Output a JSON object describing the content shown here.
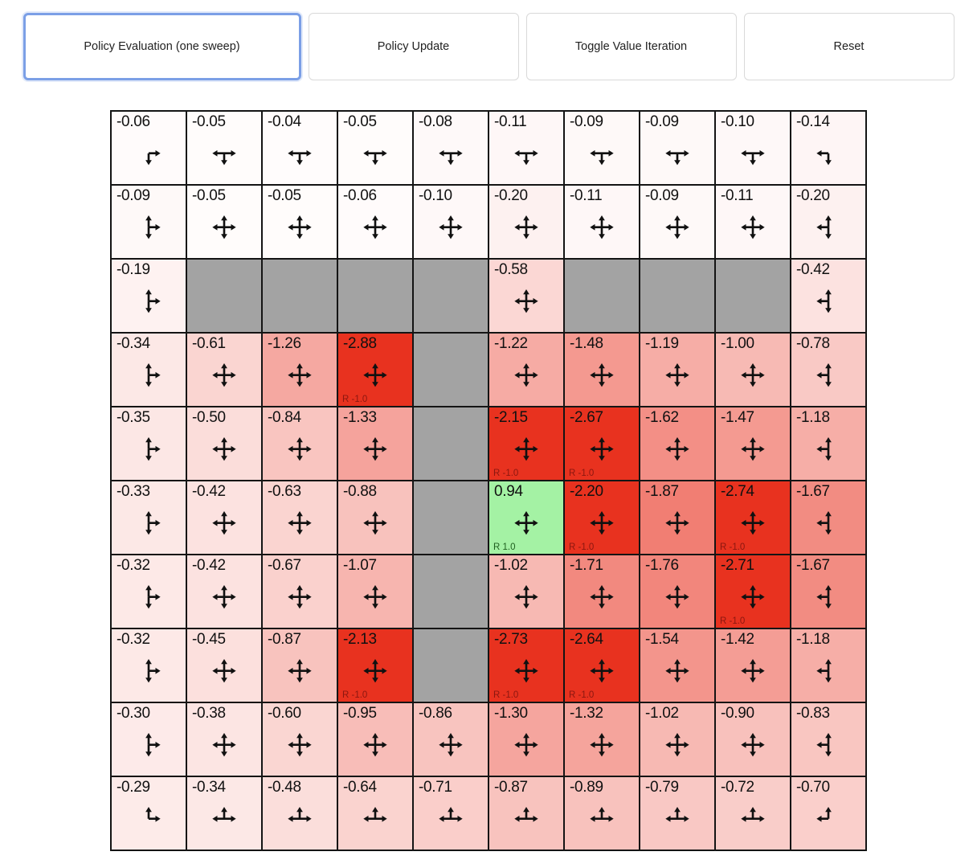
{
  "toolbar": {
    "buttons": [
      {
        "label": "Policy Evaluation (one sweep)",
        "active": true
      },
      {
        "label": "Policy Update",
        "active": false
      },
      {
        "label": "Toggle Value Iteration",
        "active": false
      },
      {
        "label": "Reset",
        "active": false
      }
    ]
  },
  "colors": {
    "penalty": "#e8321f",
    "goal_bg": "#a4f2a4",
    "wall": "#a3a3a3",
    "active_button_border": "#7b9fe6",
    "cell_border": "#141414",
    "heat_red": "#e8301f"
  },
  "grid": {
    "rows": 10,
    "cols": 10,
    "cells": [
      [
        {
          "v": "-0.06",
          "p": "DR"
        },
        {
          "v": "-0.05",
          "p": "DLR"
        },
        {
          "v": "-0.04",
          "p": "DLR"
        },
        {
          "v": "-0.05",
          "p": "DLR"
        },
        {
          "v": "-0.08",
          "p": "DLR"
        },
        {
          "v": "-0.11",
          "p": "DLR"
        },
        {
          "v": "-0.09",
          "p": "DLR"
        },
        {
          "v": "-0.09",
          "p": "DLR"
        },
        {
          "v": "-0.10",
          "p": "DLR"
        },
        {
          "v": "-0.14",
          "p": "DL"
        }
      ],
      [
        {
          "v": "-0.09",
          "p": "UDR"
        },
        {
          "v": "-0.05",
          "p": "UDLR"
        },
        {
          "v": "-0.05",
          "p": "UDLR"
        },
        {
          "v": "-0.06",
          "p": "UDLR"
        },
        {
          "v": "-0.10",
          "p": "UDLR"
        },
        {
          "v": "-0.20",
          "p": "UDLR"
        },
        {
          "v": "-0.11",
          "p": "UDLR"
        },
        {
          "v": "-0.09",
          "p": "UDLR"
        },
        {
          "v": "-0.11",
          "p": "UDLR"
        },
        {
          "v": "-0.20",
          "p": "UDL"
        }
      ],
      [
        {
          "v": "-0.19",
          "p": "UDR"
        },
        {
          "w": true
        },
        {
          "w": true
        },
        {
          "w": true
        },
        {
          "w": true
        },
        {
          "v": "-0.58",
          "p": "UDLR"
        },
        {
          "w": true
        },
        {
          "w": true
        },
        {
          "w": true
        },
        {
          "v": "-0.42",
          "p": "UDL"
        }
      ],
      [
        {
          "v": "-0.34",
          "p": "UDR"
        },
        {
          "v": "-0.61",
          "p": "UDLR"
        },
        {
          "v": "-1.26",
          "p": "UDLR"
        },
        {
          "v": "-2.88",
          "p": "UDLR",
          "r": "R -1.0"
        },
        {
          "w": true
        },
        {
          "v": "-1.22",
          "p": "UDLR"
        },
        {
          "v": "-1.48",
          "p": "UDLR"
        },
        {
          "v": "-1.19",
          "p": "UDLR"
        },
        {
          "v": "-1.00",
          "p": "UDLR"
        },
        {
          "v": "-0.78",
          "p": "UDL"
        }
      ],
      [
        {
          "v": "-0.35",
          "p": "UDR"
        },
        {
          "v": "-0.50",
          "p": "UDLR"
        },
        {
          "v": "-0.84",
          "p": "UDLR"
        },
        {
          "v": "-1.33",
          "p": "UDLR"
        },
        {
          "w": true
        },
        {
          "v": "-2.15",
          "p": "UDLR",
          "r": "R -1.0"
        },
        {
          "v": "-2.67",
          "p": "UDLR",
          "r": "R -1.0"
        },
        {
          "v": "-1.62",
          "p": "UDLR"
        },
        {
          "v": "-1.47",
          "p": "UDLR"
        },
        {
          "v": "-1.18",
          "p": "UDL"
        }
      ],
      [
        {
          "v": "-0.33",
          "p": "UDR"
        },
        {
          "v": "-0.42",
          "p": "UDLR"
        },
        {
          "v": "-0.63",
          "p": "UDLR"
        },
        {
          "v": "-0.88",
          "p": "UDLR"
        },
        {
          "w": true
        },
        {
          "v": "0.94",
          "p": "UDLR",
          "r": "R 1.0",
          "g": true
        },
        {
          "v": "-2.20",
          "p": "UDLR",
          "r": "R -1.0"
        },
        {
          "v": "-1.87",
          "p": "UDLR"
        },
        {
          "v": "-2.74",
          "p": "UDLR",
          "r": "R -1.0"
        },
        {
          "v": "-1.67",
          "p": "UDL"
        }
      ],
      [
        {
          "v": "-0.32",
          "p": "UDR"
        },
        {
          "v": "-0.42",
          "p": "UDLR"
        },
        {
          "v": "-0.67",
          "p": "UDLR"
        },
        {
          "v": "-1.07",
          "p": "UDLR"
        },
        {
          "w": true
        },
        {
          "v": "-1.02",
          "p": "UDLR"
        },
        {
          "v": "-1.71",
          "p": "UDLR"
        },
        {
          "v": "-1.76",
          "p": "UDLR"
        },
        {
          "v": "-2.71",
          "p": "UDLR",
          "r": "R -1.0"
        },
        {
          "v": "-1.67",
          "p": "UDL"
        }
      ],
      [
        {
          "v": "-0.32",
          "p": "UDR"
        },
        {
          "v": "-0.45",
          "p": "UDLR"
        },
        {
          "v": "-0.87",
          "p": "UDLR"
        },
        {
          "v": "-2.13",
          "p": "UDLR",
          "r": "R -1.0"
        },
        {
          "w": true
        },
        {
          "v": "-2.73",
          "p": "UDLR",
          "r": "R -1.0"
        },
        {
          "v": "-2.64",
          "p": "UDLR",
          "r": "R -1.0"
        },
        {
          "v": "-1.54",
          "p": "UDLR"
        },
        {
          "v": "-1.42",
          "p": "UDLR"
        },
        {
          "v": "-1.18",
          "p": "UDL"
        }
      ],
      [
        {
          "v": "-0.30",
          "p": "UDR"
        },
        {
          "v": "-0.38",
          "p": "UDLR"
        },
        {
          "v": "-0.60",
          "p": "UDLR"
        },
        {
          "v": "-0.95",
          "p": "UDLR"
        },
        {
          "v": "-0.86",
          "p": "UDLR"
        },
        {
          "v": "-1.30",
          "p": "UDLR"
        },
        {
          "v": "-1.32",
          "p": "UDLR"
        },
        {
          "v": "-1.02",
          "p": "UDLR"
        },
        {
          "v": "-0.90",
          "p": "UDLR"
        },
        {
          "v": "-0.83",
          "p": "UDL"
        }
      ],
      [
        {
          "v": "-0.29",
          "p": "UR"
        },
        {
          "v": "-0.34",
          "p": "ULR"
        },
        {
          "v": "-0.48",
          "p": "ULR"
        },
        {
          "v": "-0.64",
          "p": "ULR"
        },
        {
          "v": "-0.71",
          "p": "ULR"
        },
        {
          "v": "-0.87",
          "p": "ULR"
        },
        {
          "v": "-0.89",
          "p": "ULR"
        },
        {
          "v": "-0.79",
          "p": "ULR"
        },
        {
          "v": "-0.72",
          "p": "ULR"
        },
        {
          "v": "-0.70",
          "p": "UL"
        }
      ]
    ]
  }
}
